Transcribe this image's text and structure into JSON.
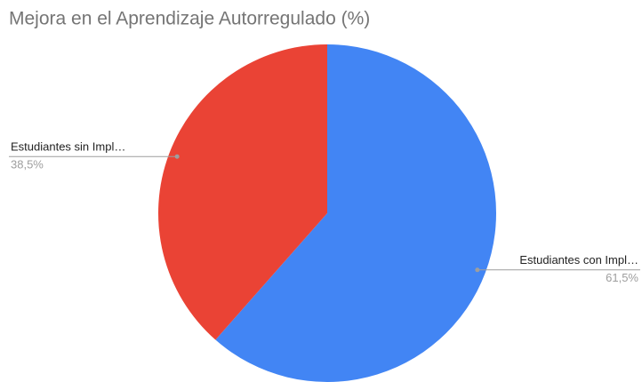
{
  "chart_data": {
    "type": "pie",
    "title": "Mejora en el Aprendizaje Autorregulado (%)",
    "categories": [
      "Estudiantes con Impl…",
      "Estudiantes sin Impl…"
    ],
    "values": [
      61.5,
      38.5
    ],
    "value_labels": [
      "61,5%",
      "38,5%"
    ],
    "colors": [
      "#4285f4",
      "#ea4335"
    ]
  }
}
